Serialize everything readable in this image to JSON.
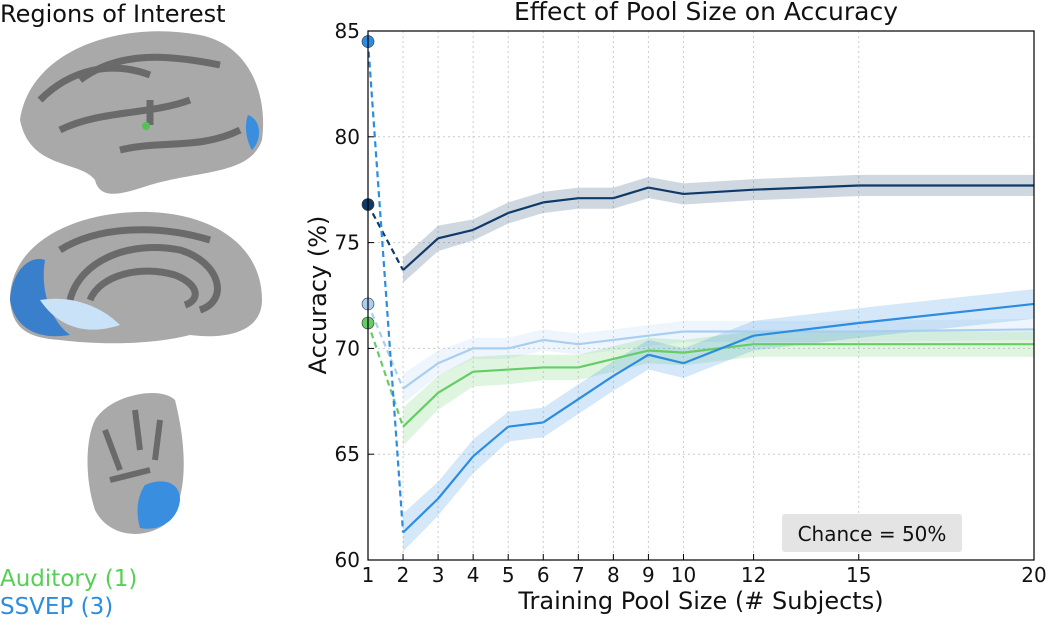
{
  "panel_title": "Regions of Interest",
  "roi_labels": [
    {
      "text": "Auditory (1)",
      "color": "#55d055"
    },
    {
      "text": "SSVEP (3)",
      "color": "#2b8ce0"
    }
  ],
  "chart_data": {
    "type": "line",
    "title": "Effect of Pool Size on Accuracy",
    "x_label": "Training Pool Size (# Subjects)",
    "y_label": "Accuracy (%)",
    "annotation": "Chance = 50%",
    "x": [
      1,
      2,
      3,
      4,
      5,
      6,
      7,
      8,
      9,
      10,
      12,
      15,
      20
    ],
    "xlim": [
      1,
      20
    ],
    "xticks": [
      1,
      2,
      3,
      4,
      5,
      6,
      7,
      8,
      9,
      10,
      12,
      15,
      20
    ],
    "ylim": [
      60,
      85
    ],
    "yticks": [
      60,
      65,
      70,
      75,
      80,
      85
    ],
    "grid": true,
    "series": [
      {
        "color": "#0f3a68",
        "values": [
          76.8,
          73.7,
          75.2,
          75.6,
          76.4,
          76.9,
          77.1,
          77.1,
          77.6,
          77.3,
          77.5,
          77.7,
          77.7
        ],
        "errors": [
          0,
          0.6,
          0.6,
          0.5,
          0.5,
          0.5,
          0.5,
          0.5,
          0.5,
          0.5,
          0.5,
          0.5,
          0.5
        ]
      },
      {
        "color": "#a9cff0",
        "values": [
          72.1,
          68.1,
          69.3,
          70.0,
          70.0,
          70.4,
          70.2,
          70.4,
          70.6,
          70.8,
          70.8,
          70.8,
          70.9
        ],
        "errors": [
          0,
          0.7,
          0.6,
          0.5,
          0.5,
          0.5,
          0.5,
          0.5,
          0.5,
          0.5,
          0.5,
          0.5,
          0.5
        ]
      },
      {
        "color": "#66cc66",
        "values": [
          71.2,
          66.3,
          67.9,
          68.9,
          69.0,
          69.1,
          69.1,
          69.5,
          69.9,
          69.8,
          70.2,
          70.2,
          70.2
        ],
        "errors": [
          0,
          0.9,
          0.8,
          0.7,
          0.7,
          0.6,
          0.6,
          0.6,
          0.6,
          0.6,
          0.6,
          0.6,
          0.6
        ]
      },
      {
        "color": "#2b8ce0",
        "values": [
          84.5,
          61.3,
          62.9,
          64.9,
          66.3,
          66.5,
          67.6,
          68.7,
          69.7,
          69.3,
          70.6,
          71.2,
          72.1
        ],
        "errors": [
          0,
          0.9,
          0.8,
          0.8,
          0.7,
          0.7,
          0.7,
          0.7,
          0.7,
          0.7,
          0.7,
          0.7,
          0.7
        ]
      }
    ]
  }
}
